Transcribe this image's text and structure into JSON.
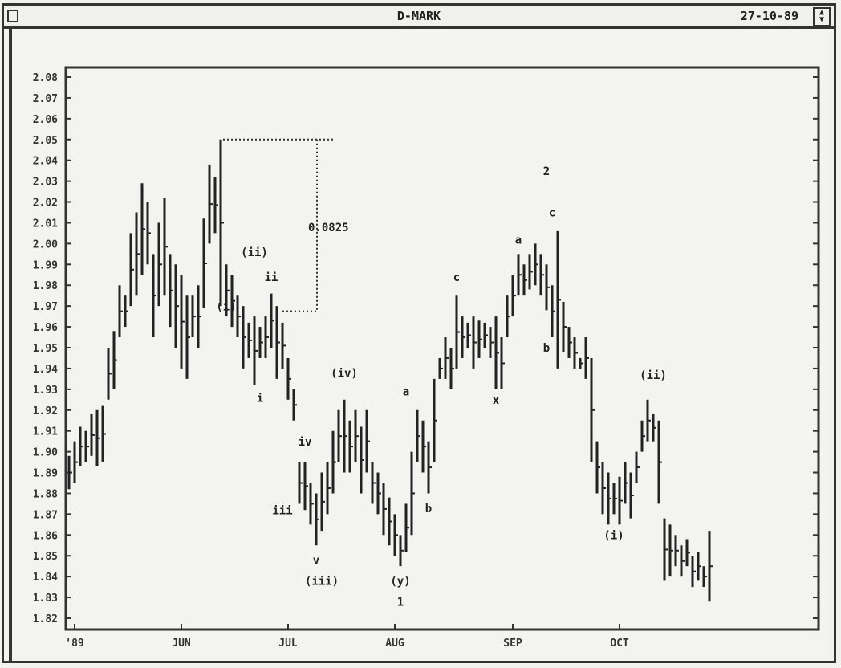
{
  "window": {
    "title": "D-MARK",
    "date": "27-10-89",
    "menu_icon": "system-menu-icon",
    "scroll_icon": "up-down-arrows-icon"
  },
  "chart_data": {
    "type": "bar-ohlc",
    "title": "D-MARK",
    "ylim": [
      1.82,
      2.08
    ],
    "yticks": [
      "2.08",
      "2.07",
      "2.06",
      "2.05",
      "2.04",
      "2.03",
      "2.02",
      "2.01",
      "2.00",
      "1.99",
      "1.98",
      "1.97",
      "1.96",
      "1.95",
      "1.94",
      "1.93",
      "1.92",
      "1.91",
      "1.90",
      "1.89",
      "1.88",
      "1.87",
      "1.86",
      "1.85",
      "1.84",
      "1.83",
      "1.82"
    ],
    "xticks": [
      {
        "label": "'89",
        "bar": 1
      },
      {
        "label": "JUN",
        "bar": 20
      },
      {
        "label": "JUL",
        "bar": 39
      },
      {
        "label": "AUG",
        "bar": 58
      },
      {
        "label": "SEP",
        "bar": 79
      },
      {
        "label": "OCT",
        "bar": 98
      }
    ],
    "grid": false,
    "bars": [
      [
        1.898,
        1.882
      ],
      [
        1.905,
        1.885
      ],
      [
        1.912,
        1.893
      ],
      [
        1.91,
        1.895
      ],
      [
        1.918,
        1.898
      ],
      [
        1.92,
        1.893
      ],
      [
        1.922,
        1.895
      ],
      [
        1.95,
        1.925
      ],
      [
        1.958,
        1.93
      ],
      [
        1.98,
        1.955
      ],
      [
        1.975,
        1.96
      ],
      [
        2.005,
        1.97
      ],
      [
        2.015,
        1.975
      ],
      [
        2.029,
        1.985
      ],
      [
        2.02,
        1.99
      ],
      [
        1.995,
        1.955
      ],
      [
        2.01,
        1.97
      ],
      [
        2.022,
        1.975
      ],
      [
        1.995,
        1.96
      ],
      [
        1.99,
        1.95
      ],
      [
        1.985,
        1.94
      ],
      [
        1.975,
        1.935
      ],
      [
        1.975,
        1.955
      ],
      [
        1.98,
        1.95
      ],
      [
        2.012,
        1.969
      ],
      [
        2.038,
        2.0
      ],
      [
        2.032,
        2.005
      ],
      [
        2.05,
        1.97
      ],
      [
        1.99,
        1.965
      ],
      [
        1.985,
        1.96
      ],
      [
        1.975,
        1.955
      ],
      [
        1.97,
        1.94
      ],
      [
        1.962,
        1.945
      ],
      [
        1.965,
        1.932
      ],
      [
        1.96,
        1.945
      ],
      [
        1.965,
        1.945
      ],
      [
        1.976,
        1.95
      ],
      [
        1.97,
        1.935
      ],
      [
        1.962,
        1.94
      ],
      [
        1.945,
        1.925
      ],
      [
        1.93,
        1.915
      ],
      [
        1.895,
        1.875
      ],
      [
        1.895,
        1.872
      ],
      [
        1.885,
        1.865
      ],
      [
        1.88,
        1.855
      ],
      [
        1.89,
        1.862
      ],
      [
        1.895,
        1.87
      ],
      [
        1.91,
        1.88
      ],
      [
        1.92,
        1.895
      ],
      [
        1.925,
        1.89
      ],
      [
        1.915,
        1.89
      ],
      [
        1.92,
        1.895
      ],
      [
        1.912,
        1.88
      ],
      [
        1.92,
        1.89
      ],
      [
        1.895,
        1.875
      ],
      [
        1.89,
        1.87
      ],
      [
        1.885,
        1.86
      ],
      [
        1.878,
        1.855
      ],
      [
        1.87,
        1.85
      ],
      [
        1.86,
        1.845
      ],
      [
        1.875,
        1.852
      ],
      [
        1.9,
        1.86
      ],
      [
        1.92,
        1.895
      ],
      [
        1.915,
        1.89
      ],
      [
        1.905,
        1.88
      ],
      [
        1.935,
        1.895
      ],
      [
        1.945,
        1.935
      ],
      [
        1.955,
        1.935
      ],
      [
        1.95,
        1.93
      ],
      [
        1.975,
        1.94
      ],
      [
        1.965,
        1.945
      ],
      [
        1.962,
        1.95
      ],
      [
        1.965,
        1.94
      ],
      [
        1.963,
        1.945
      ],
      [
        1.962,
        1.95
      ],
      [
        1.96,
        1.945
      ],
      [
        1.965,
        1.93
      ],
      [
        1.955,
        1.93
      ],
      [
        1.975,
        1.955
      ],
      [
        1.985,
        1.965
      ],
      [
        1.995,
        1.975
      ],
      [
        1.99,
        1.975
      ],
      [
        1.995,
        1.978
      ],
      [
        2.0,
        1.98
      ],
      [
        1.995,
        1.975
      ],
      [
        1.99,
        1.968
      ],
      [
        1.98,
        1.955
      ],
      [
        2.006,
        1.94
      ],
      [
        1.972,
        1.948
      ],
      [
        1.96,
        1.945
      ],
      [
        1.955,
        1.94
      ],
      [
        1.945,
        1.94
      ],
      [
        1.955,
        1.935
      ],
      [
        1.945,
        1.895
      ],
      [
        1.905,
        1.88
      ],
      [
        1.895,
        1.87
      ],
      [
        1.89,
        1.865
      ],
      [
        1.885,
        1.87
      ],
      [
        1.888,
        1.865
      ],
      [
        1.895,
        1.875
      ],
      [
        1.89,
        1.868
      ],
      [
        1.9,
        1.885
      ],
      [
        1.915,
        1.9
      ],
      [
        1.925,
        1.905
      ],
      [
        1.918,
        1.905
      ],
      [
        1.915,
        1.875
      ],
      [
        1.868,
        1.838
      ],
      [
        1.865,
        1.84
      ],
      [
        1.86,
        1.845
      ],
      [
        1.855,
        1.84
      ],
      [
        1.858,
        1.845
      ],
      [
        1.85,
        1.835
      ],
      [
        1.852,
        1.838
      ],
      [
        1.845,
        1.835
      ],
      [
        1.862,
        1.828
      ]
    ],
    "measure": {
      "label": "0.0825",
      "from": 2.05,
      "to": 1.9675
    },
    "annotations": [
      {
        "text": "(ii)",
        "bar": 33,
        "price": 1.994
      },
      {
        "text": "(i)",
        "bar": 28,
        "price": 1.968
      },
      {
        "text": "ii",
        "bar": 36,
        "price": 1.982
      },
      {
        "text": "i",
        "bar": 34,
        "price": 1.924
      },
      {
        "text": "iv",
        "bar": 42,
        "price": 1.903
      },
      {
        "text": "iii",
        "bar": 38,
        "price": 1.87
      },
      {
        "text": "v",
        "bar": 44,
        "price": 1.846
      },
      {
        "text": "(iii)",
        "bar": 45,
        "price": 1.836
      },
      {
        "text": "(iv)",
        "bar": 49,
        "price": 1.936
      },
      {
        "text": "a",
        "bar": 60,
        "price": 1.927
      },
      {
        "text": "b",
        "bar": 64,
        "price": 1.871
      },
      {
        "text": "(y)",
        "bar": 59,
        "price": 1.836
      },
      {
        "text": "1",
        "bar": 59,
        "price": 1.826
      },
      {
        "text": "c",
        "bar": 69,
        "price": 1.982
      },
      {
        "text": "x",
        "bar": 76,
        "price": 1.923
      },
      {
        "text": "a",
        "bar": 80,
        "price": 2.0
      },
      {
        "text": "2",
        "bar": 85,
        "price": 2.033
      },
      {
        "text": "c",
        "bar": 86,
        "price": 2.013
      },
      {
        "text": "b",
        "bar": 85,
        "price": 1.948
      },
      {
        "text": "(i)",
        "bar": 97,
        "price": 1.858
      },
      {
        "text": "(ii)",
        "bar": 104,
        "price": 1.935
      }
    ]
  }
}
